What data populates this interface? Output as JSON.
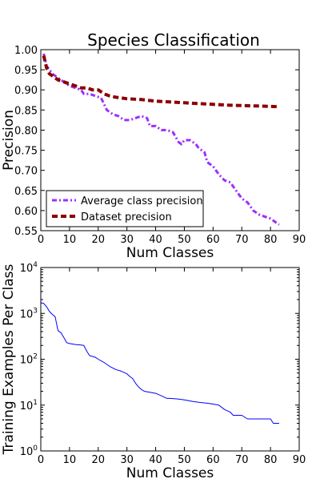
{
  "chart_data": [
    {
      "type": "line",
      "title": "Species Classification",
      "xlabel": "Num Classes",
      "ylabel": "Precision",
      "xlim": [
        0,
        90
      ],
      "ylim": [
        0.55,
        1.0
      ],
      "xticks": [
        0,
        10,
        20,
        30,
        40,
        50,
        60,
        70,
        80,
        90
      ],
      "xtick_labels": [
        "0",
        "10",
        "20",
        "30",
        "40",
        "50",
        "60",
        "70",
        "80",
        "90"
      ],
      "yticks": [
        0.55,
        0.6,
        0.65,
        0.7,
        0.75,
        0.8,
        0.85,
        0.9,
        0.95,
        1.0
      ],
      "ytick_labels": [
        "0.55",
        "0.60",
        "0.65",
        "0.70",
        "0.75",
        "0.80",
        "0.85",
        "0.90",
        "0.95",
        "1.00"
      ],
      "grid": false,
      "legend": "lower-left",
      "series": [
        {
          "name": "Average class precision",
          "color": "#9b30ff",
          "style": "dash-dot",
          "x": [
            1,
            2,
            3,
            4,
            5,
            6,
            7,
            8,
            10,
            12,
            14,
            15,
            17,
            19,
            21,
            22,
            23,
            25,
            27,
            29,
            31,
            33,
            35,
            37,
            38,
            40,
            42,
            44,
            46,
            48,
            49,
            50,
            52,
            54,
            55,
            57,
            58,
            60,
            62,
            64,
            66,
            68,
            70,
            72,
            74,
            76,
            78,
            80,
            82,
            83
          ],
          "y": [
            0.99,
            0.96,
            0.95,
            0.94,
            0.935,
            0.93,
            0.925,
            0.92,
            0.91,
            0.905,
            0.9,
            0.89,
            0.89,
            0.885,
            0.88,
            0.865,
            0.85,
            0.84,
            0.835,
            0.825,
            0.825,
            0.83,
            0.835,
            0.83,
            0.81,
            0.81,
            0.8,
            0.8,
            0.795,
            0.77,
            0.765,
            0.775,
            0.775,
            0.765,
            0.755,
            0.745,
            0.72,
            0.71,
            0.69,
            0.675,
            0.67,
            0.65,
            0.63,
            0.62,
            0.6,
            0.59,
            0.585,
            0.58,
            0.57,
            0.565
          ]
        },
        {
          "name": "Dataset precision",
          "color": "#8b0000",
          "style": "dashed",
          "x": [
            1,
            2,
            3,
            4,
            5,
            6,
            8,
            10,
            12,
            14,
            16,
            18,
            20,
            22,
            24,
            26,
            28,
            30,
            35,
            40,
            45,
            50,
            55,
            60,
            65,
            70,
            75,
            80,
            83
          ],
          "y": [
            0.985,
            0.955,
            0.94,
            0.935,
            0.93,
            0.925,
            0.92,
            0.915,
            0.91,
            0.905,
            0.905,
            0.9,
            0.9,
            0.89,
            0.885,
            0.882,
            0.88,
            0.878,
            0.876,
            0.872,
            0.87,
            0.868,
            0.866,
            0.864,
            0.862,
            0.861,
            0.86,
            0.859,
            0.858
          ]
        }
      ]
    },
    {
      "type": "line",
      "title": "",
      "xlabel": "Num Classes",
      "ylabel": "Training Examples Per Class",
      "xlim": [
        0,
        90
      ],
      "ylim": [
        1,
        10000
      ],
      "yscale": "log",
      "xticks": [
        0,
        10,
        20,
        30,
        40,
        50,
        60,
        70,
        80,
        90
      ],
      "xtick_labels": [
        "0",
        "10",
        "20",
        "30",
        "40",
        "50",
        "60",
        "70",
        "80",
        "90"
      ],
      "yticks": [
        1,
        10,
        100,
        1000,
        10000
      ],
      "ytick_labels": [
        [
          "10",
          "0"
        ],
        [
          "10",
          "1"
        ],
        [
          "10",
          "2"
        ],
        [
          "10",
          "3"
        ],
        [
          "10",
          "4"
        ]
      ],
      "grid": false,
      "series": [
        {
          "color": "#0000ff",
          "style": "solid",
          "x": [
            0,
            1,
            2,
            3,
            4,
            5,
            6,
            7,
            8,
            9,
            10,
            12,
            14,
            15,
            16,
            17,
            18,
            19,
            20,
            22,
            24,
            26,
            28,
            30,
            31,
            32,
            33,
            34,
            35,
            36,
            38,
            40,
            41,
            44,
            45,
            48,
            50,
            53,
            55,
            58,
            60,
            62,
            64,
            66,
            67,
            68,
            70,
            72,
            75,
            78,
            80,
            81,
            83
          ],
          "y": [
            1700,
            1650,
            1400,
            1100,
            950,
            850,
            420,
            380,
            300,
            230,
            220,
            210,
            205,
            200,
            150,
            120,
            115,
            110,
            100,
            85,
            70,
            60,
            55,
            48,
            42,
            38,
            30,
            25,
            22,
            20,
            19,
            18,
            17,
            14,
            14,
            13.5,
            13,
            12,
            11.5,
            11,
            10.5,
            10,
            8,
            7,
            6,
            6,
            6,
            5,
            5,
            5,
            5,
            4,
            4
          ]
        }
      ]
    }
  ]
}
